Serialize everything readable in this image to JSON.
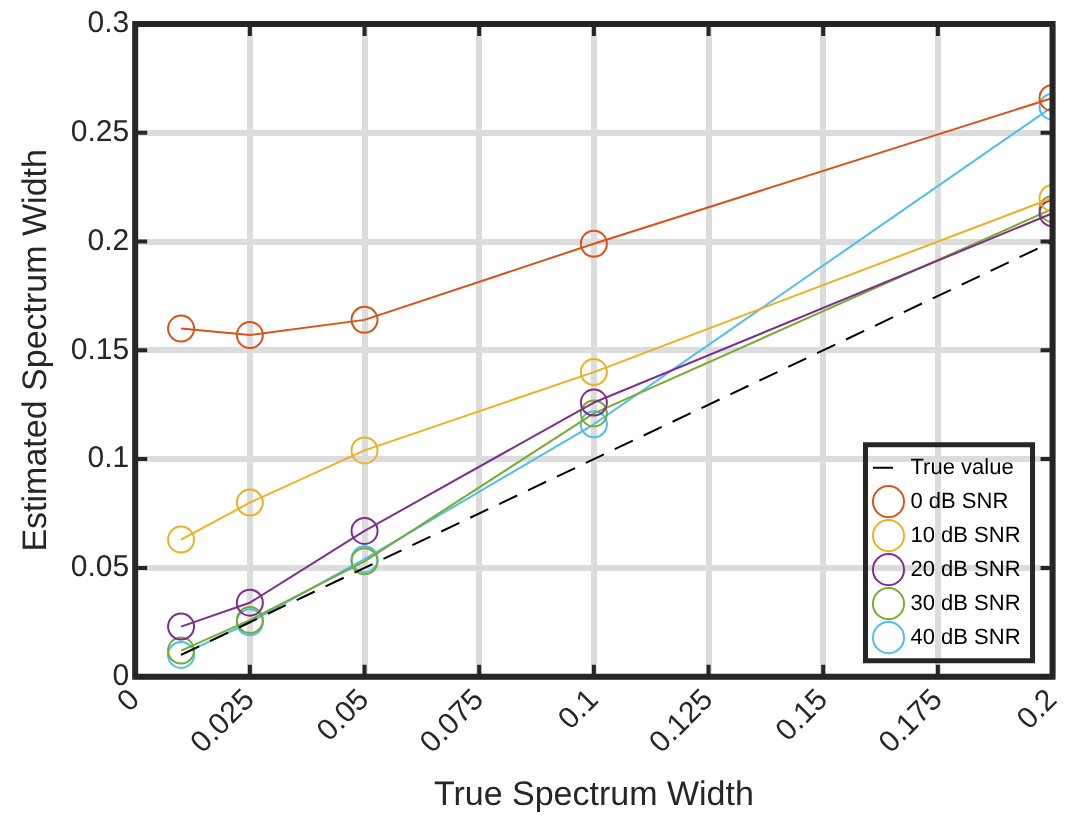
{
  "chart_data": {
    "type": "line",
    "xlabel": "True Spectrum Width",
    "ylabel": "Estimated Spectrum Width",
    "x": [
      0.01,
      0.025,
      0.05,
      0.1,
      0.2
    ],
    "series": [
      {
        "name": "True value",
        "color": "#000000",
        "marker": "none",
        "line_style": "dashed",
        "values": [
          0.01,
          0.025,
          0.05,
          0.1,
          0.2
        ]
      },
      {
        "name": "0 dB SNR",
        "color": "#d95319",
        "values": [
          0.16,
          0.157,
          0.164,
          0.199,
          0.266
        ]
      },
      {
        "name": "10 dB SNR",
        "color": "#edb120",
        "values": [
          0.063,
          0.08,
          0.104,
          0.14,
          0.22
        ]
      },
      {
        "name": "20 dB SNR",
        "color": "#7e2f8e",
        "values": [
          0.023,
          0.034,
          0.067,
          0.126,
          0.213
        ]
      },
      {
        "name": "30 dB SNR",
        "color": "#77ac30",
        "values": [
          0.012,
          0.026,
          0.053,
          0.121,
          0.215
        ]
      },
      {
        "name": "40 dB SNR",
        "color": "#4dbeee",
        "values": [
          0.01,
          0.025,
          0.054,
          0.116,
          0.262
        ]
      }
    ],
    "xlim": [
      0,
      0.2
    ],
    "xticks": [
      0,
      0.025,
      0.05,
      0.075,
      0.1,
      0.125,
      0.15,
      0.175,
      0.2
    ],
    "ylim": [
      0,
      0.3
    ],
    "yticks": [
      0,
      0.05,
      0.1,
      0.15,
      0.2,
      0.25,
      0.3
    ],
    "grid": true,
    "legend": "bottom right",
    "marker": "circle",
    "line_style": "solid"
  }
}
